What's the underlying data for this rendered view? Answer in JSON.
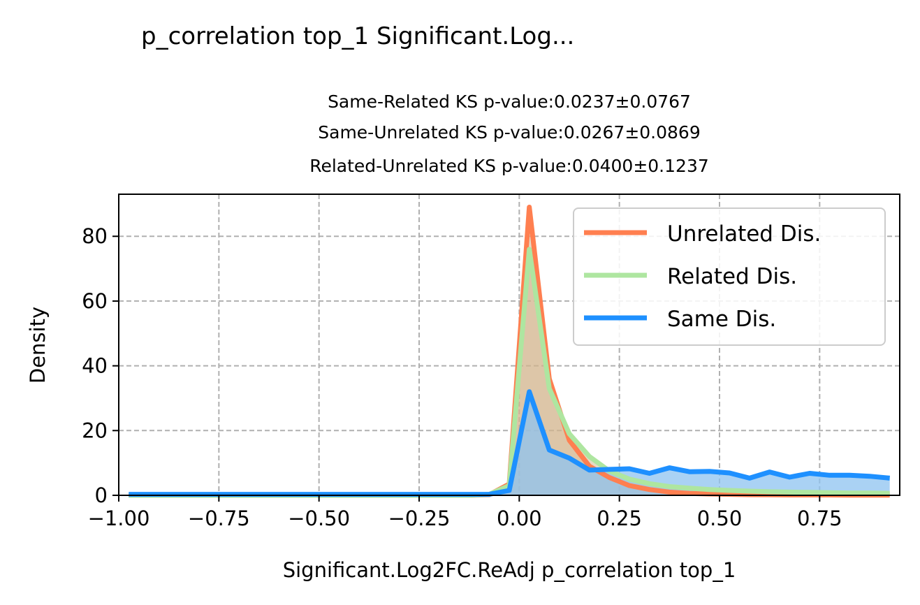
{
  "chart_data": {
    "type": "area",
    "title": "p_correlation top_1 Significant.Log...",
    "subtitle_lines": [
      "Same-Related KS p-value:0.0237±0.0767",
      "Same-Unrelated KS p-value:0.0267±0.0869",
      "Related-Unrelated KS p-value:0.0400±0.1237"
    ],
    "xlabel": "Significant.Log2FC.ReAdj p_correlation top_1",
    "ylabel": "Density",
    "xlim": [
      -1.0,
      0.95
    ],
    "ylim": [
      0,
      93
    ],
    "xticks": [
      -1.0,
      -0.75,
      -0.5,
      -0.25,
      0.0,
      0.25,
      0.5,
      0.75
    ],
    "xtick_labels": [
      "−1.00",
      "−0.75",
      "−0.50",
      "−0.25",
      "0.00",
      "0.25",
      "0.50",
      "0.75"
    ],
    "yticks": [
      0,
      20,
      40,
      60,
      80
    ],
    "ytick_labels": [
      "0",
      "20",
      "40",
      "60",
      "80"
    ],
    "grid": true,
    "legend_position": "upper-right",
    "series": [
      {
        "name": "Unrelated Dis.",
        "color": "#ff7f50",
        "fill_color": "#d2b48c",
        "x": [
          -0.975,
          -0.925,
          -0.875,
          -0.825,
          -0.775,
          -0.725,
          -0.675,
          -0.625,
          -0.575,
          -0.525,
          -0.475,
          -0.425,
          -0.375,
          -0.325,
          -0.275,
          -0.225,
          -0.175,
          -0.125,
          -0.075,
          -0.025,
          0.025,
          0.075,
          0.125,
          0.175,
          0.225,
          0.275,
          0.325,
          0.375,
          0.425,
          0.475,
          0.525,
          0.575,
          0.625,
          0.675,
          0.725,
          0.775,
          0.825,
          0.875,
          0.925
        ],
        "y": [
          0,
          0,
          0,
          0,
          0,
          0,
          0,
          0,
          0,
          0,
          0,
          0,
          0,
          0,
          0,
          0,
          0,
          0,
          0.2,
          3.5,
          89,
          36,
          17,
          9,
          5.5,
          3,
          1.8,
          1,
          0.6,
          0.4,
          0.3,
          0.2,
          0.15,
          0.1,
          0.1,
          0.1,
          0.05,
          0.05,
          0.05
        ]
      },
      {
        "name": "Related Dis.",
        "color": "#aee6a0",
        "fill_color": "#d2b48c",
        "x": [
          -0.975,
          -0.925,
          -0.875,
          -0.825,
          -0.775,
          -0.725,
          -0.675,
          -0.625,
          -0.575,
          -0.525,
          -0.475,
          -0.425,
          -0.375,
          -0.325,
          -0.275,
          -0.225,
          -0.175,
          -0.125,
          -0.075,
          -0.025,
          0.025,
          0.075,
          0.125,
          0.175,
          0.225,
          0.275,
          0.325,
          0.375,
          0.425,
          0.475,
          0.525,
          0.575,
          0.625,
          0.675,
          0.725,
          0.775,
          0.825,
          0.875,
          0.925
        ],
        "y": [
          0,
          0,
          0,
          0,
          0,
          0,
          0,
          0,
          0,
          0,
          0,
          0,
          0,
          0,
          0,
          0,
          0,
          0,
          0.3,
          3,
          76,
          33,
          19,
          12,
          7.5,
          5,
          3.6,
          2.7,
          2.2,
          1.8,
          1.5,
          1.3,
          1.1,
          1,
          0.9,
          0.8,
          0.7,
          0.7,
          0.6
        ]
      },
      {
        "name": "Same Dis.",
        "color": "#1e90ff",
        "fill_color": "#8ec3f0",
        "x": [
          -0.975,
          -0.925,
          -0.875,
          -0.825,
          -0.775,
          -0.725,
          -0.675,
          -0.625,
          -0.575,
          -0.525,
          -0.475,
          -0.425,
          -0.375,
          -0.325,
          -0.275,
          -0.225,
          -0.175,
          -0.125,
          -0.075,
          -0.025,
          0.025,
          0.075,
          0.125,
          0.175,
          0.225,
          0.275,
          0.325,
          0.375,
          0.425,
          0.475,
          0.525,
          0.575,
          0.625,
          0.675,
          0.725,
          0.775,
          0.825,
          0.875,
          0.925
        ],
        "y": [
          0.3,
          0.3,
          0.3,
          0.3,
          0.3,
          0.3,
          0.3,
          0.3,
          0.3,
          0.3,
          0.3,
          0.3,
          0.3,
          0.3,
          0.3,
          0.3,
          0.3,
          0.3,
          0.3,
          1.5,
          32,
          14,
          11.5,
          7.8,
          8,
          8.2,
          6.8,
          8.5,
          7.3,
          7.4,
          6.9,
          5.3,
          7.2,
          5.6,
          6.8,
          6.2,
          6.2,
          5.9,
          5.3
        ]
      }
    ]
  }
}
